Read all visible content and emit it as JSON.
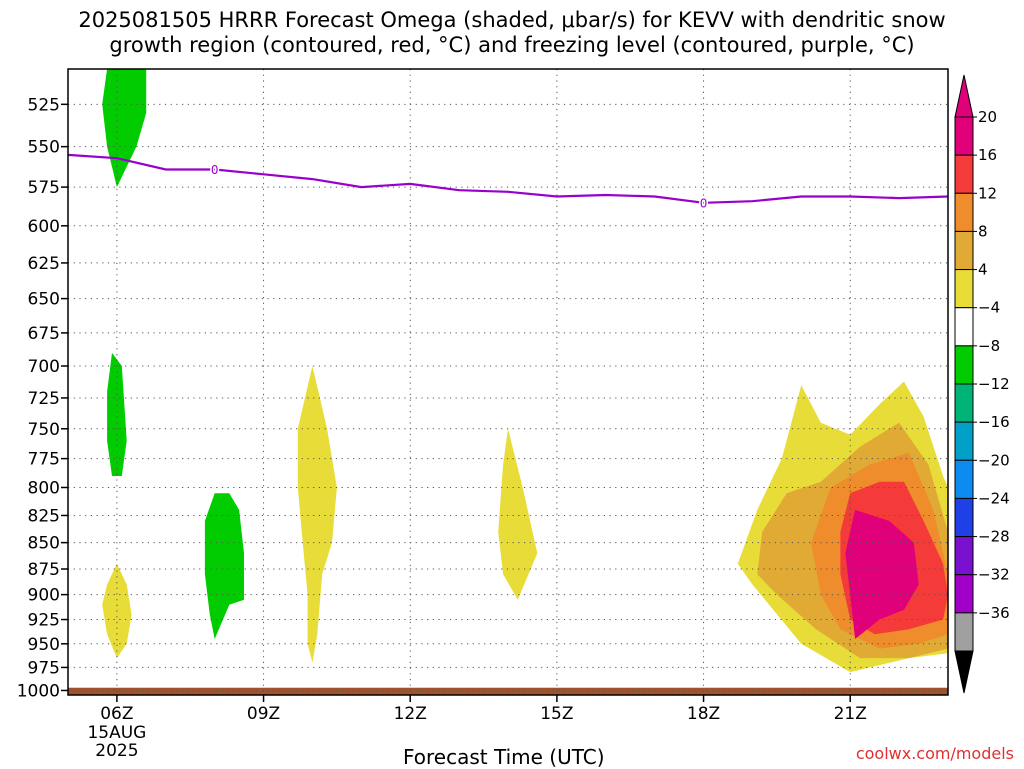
{
  "chart_data": {
    "type": "heatmap",
    "title_line1": "2025081505 HRRR Forecast Omega (shaded, μbar/s) for KEVV with dendritic snow",
    "title_line2": "growth region (contoured, red, °C) and freezing level (contoured, purple, °C)",
    "xlabel": "Forecast Time (UTC)",
    "x_ticks": [
      {
        "hour": 6,
        "label": "06Z"
      },
      {
        "hour": 9,
        "label": "09Z"
      },
      {
        "hour": 12,
        "label": "12Z"
      },
      {
        "hour": 15,
        "label": "15Z"
      },
      {
        "hour": 18,
        "label": "18Z"
      },
      {
        "hour": 21,
        "label": "21Z"
      }
    ],
    "x_date_label": [
      "15AUG",
      "2025"
    ],
    "xlim": [
      5,
      23
    ],
    "y_ticks": [
      525,
      550,
      575,
      600,
      625,
      650,
      675,
      700,
      725,
      750,
      775,
      800,
      825,
      850,
      875,
      900,
      925,
      950,
      975,
      1000
    ],
    "ylim_pressure": [
      505,
      1005
    ],
    "y_scale": "log-pressure (inverted)",
    "grid": true,
    "colorbar": {
      "labels": [
        "20",
        "16",
        "12",
        "8",
        "4",
        "−4",
        "−8",
        "−12",
        "−16",
        "−20",
        "−24",
        "−28",
        "−32",
        "−36"
      ],
      "bands": [
        {
          "color": "#e0007a"
        },
        {
          "color": "#f53a3a"
        },
        {
          "color": "#ef8c2c"
        },
        {
          "color": "#e0aa35"
        },
        {
          "color": "#e8dc38"
        },
        {
          "color": "#ffffff"
        },
        {
          "color": "#00cc00"
        },
        {
          "color": "#00b478"
        },
        {
          "color": "#00a0c8"
        },
        {
          "color": "#0c8cf0"
        },
        {
          "color": "#1e40e6"
        },
        {
          "color": "#7a10d0"
        },
        {
          "color": "#a000c8"
        },
        {
          "color": "#a0a0a0"
        }
      ],
      "tip_top_color": "#e0007a",
      "tip_bottom_color": "#000000"
    },
    "colors": {
      "freezing_level": "#9900cc",
      "ground": "#a0522d",
      "green": "#00cc00",
      "yellow": "#e8dc38",
      "orange_light": "#e0aa35",
      "orange": "#ef8c2c",
      "red": "#f53a3a",
      "magenta": "#e0007a"
    },
    "freezing_level_label": "0",
    "freezing_level": {
      "hours": [
        5,
        6,
        7,
        8,
        9,
        10,
        11,
        12,
        13,
        14,
        15,
        16,
        17,
        18,
        19,
        20,
        21,
        22,
        23
      ],
      "pressure": [
        555,
        557,
        564,
        564,
        567,
        570,
        575,
        573,
        577,
        578,
        581,
        580,
        581,
        585,
        584,
        581,
        581,
        582,
        581
      ],
      "label_hours": [
        8,
        18
      ]
    },
    "regions": [
      {
        "name": "green",
        "color": "#00cc00",
        "points": [
          [
            5.8,
            505
          ],
          [
            6.6,
            505
          ],
          [
            6.6,
            530
          ],
          [
            6.4,
            550
          ],
          [
            6.0,
            575
          ],
          [
            5.8,
            550
          ],
          [
            5.7,
            525
          ]
        ]
      },
      {
        "name": "green",
        "color": "#00cc00",
        "points": [
          [
            5.9,
            690
          ],
          [
            6.1,
            700
          ],
          [
            6.2,
            760
          ],
          [
            6.1,
            790
          ],
          [
            5.9,
            790
          ],
          [
            5.8,
            760
          ],
          [
            5.8,
            720
          ]
        ]
      },
      {
        "name": "green",
        "color": "#00cc00",
        "points": [
          [
            8.0,
            805
          ],
          [
            8.3,
            805
          ],
          [
            8.5,
            820
          ],
          [
            8.6,
            860
          ],
          [
            8.6,
            905
          ],
          [
            8.3,
            910
          ],
          [
            8.0,
            945
          ],
          [
            7.9,
            920
          ],
          [
            7.8,
            880
          ],
          [
            7.8,
            830
          ]
        ]
      },
      {
        "name": "yellow",
        "color": "#e8dc38",
        "points": [
          [
            6.0,
            870
          ],
          [
            6.2,
            890
          ],
          [
            6.3,
            920
          ],
          [
            6.2,
            950
          ],
          [
            6.0,
            965
          ],
          [
            5.8,
            940
          ],
          [
            5.7,
            910
          ],
          [
            5.8,
            890
          ]
        ]
      },
      {
        "name": "yellow",
        "color": "#e8dc38",
        "points": [
          [
            10.0,
            700
          ],
          [
            10.3,
            750
          ],
          [
            10.5,
            800
          ],
          [
            10.4,
            850
          ],
          [
            10.2,
            880
          ],
          [
            10.1,
            940
          ],
          [
            10.0,
            970
          ],
          [
            9.9,
            950
          ],
          [
            9.9,
            900
          ],
          [
            9.8,
            850
          ],
          [
            9.7,
            800
          ],
          [
            9.7,
            750
          ]
        ]
      },
      {
        "name": "yellow",
        "color": "#e8dc38",
        "points": [
          [
            14.0,
            750
          ],
          [
            14.3,
            800
          ],
          [
            14.6,
            860
          ],
          [
            14.2,
            905
          ],
          [
            13.9,
            880
          ],
          [
            13.8,
            840
          ],
          [
            13.9,
            780
          ]
        ]
      },
      {
        "name": "yellow",
        "color": "#e8dc38",
        "points": [
          [
            20.0,
            715
          ],
          [
            20.4,
            745
          ],
          [
            21.0,
            755
          ],
          [
            21.6,
            730
          ],
          [
            22.1,
            712
          ],
          [
            22.5,
            740
          ],
          [
            22.9,
            790
          ],
          [
            23.0,
            800
          ],
          [
            23.0,
            960
          ],
          [
            22.2,
            965
          ],
          [
            21.0,
            980
          ],
          [
            20.0,
            950
          ],
          [
            19.0,
            890
          ],
          [
            18.7,
            870
          ],
          [
            19.1,
            820
          ],
          [
            19.6,
            775
          ]
        ]
      },
      {
        "name": "orange_light",
        "color": "#e0aa35",
        "points": [
          [
            19.7,
            805
          ],
          [
            20.4,
            795
          ],
          [
            21.2,
            765
          ],
          [
            22.0,
            745
          ],
          [
            22.6,
            780
          ],
          [
            23.0,
            840
          ],
          [
            23.0,
            955
          ],
          [
            22.2,
            965
          ],
          [
            21.2,
            965
          ],
          [
            20.3,
            935
          ],
          [
            19.5,
            900
          ],
          [
            19.1,
            880
          ],
          [
            19.2,
            840
          ]
        ]
      },
      {
        "name": "orange",
        "color": "#ef8c2c",
        "points": [
          [
            20.6,
            800
          ],
          [
            21.4,
            780
          ],
          [
            22.2,
            770
          ],
          [
            22.7,
            820
          ],
          [
            23.0,
            880
          ],
          [
            23.0,
            940
          ],
          [
            22.4,
            950
          ],
          [
            21.6,
            955
          ],
          [
            20.8,
            935
          ],
          [
            20.4,
            900
          ],
          [
            20.2,
            850
          ]
        ]
      },
      {
        "name": "red",
        "color": "#f53a3a",
        "points": [
          [
            21.0,
            805
          ],
          [
            21.6,
            795
          ],
          [
            22.1,
            795
          ],
          [
            22.5,
            830
          ],
          [
            22.9,
            870
          ],
          [
            23.0,
            900
          ],
          [
            22.9,
            925
          ],
          [
            22.2,
            935
          ],
          [
            21.5,
            940
          ],
          [
            21.0,
            925
          ],
          [
            20.8,
            880
          ],
          [
            20.8,
            840
          ]
        ]
      },
      {
        "name": "magenta",
        "color": "#e0007a",
        "points": [
          [
            21.1,
            820
          ],
          [
            21.8,
            830
          ],
          [
            22.3,
            850
          ],
          [
            22.4,
            890
          ],
          [
            22.1,
            915
          ],
          [
            21.6,
            925
          ],
          [
            21.1,
            945
          ],
          [
            21.0,
            900
          ],
          [
            20.9,
            860
          ]
        ]
      }
    ],
    "ground_band": {
      "pressure_top": 997,
      "pressure_bottom": 1005
    }
  },
  "credit": "coolwx.com/models"
}
